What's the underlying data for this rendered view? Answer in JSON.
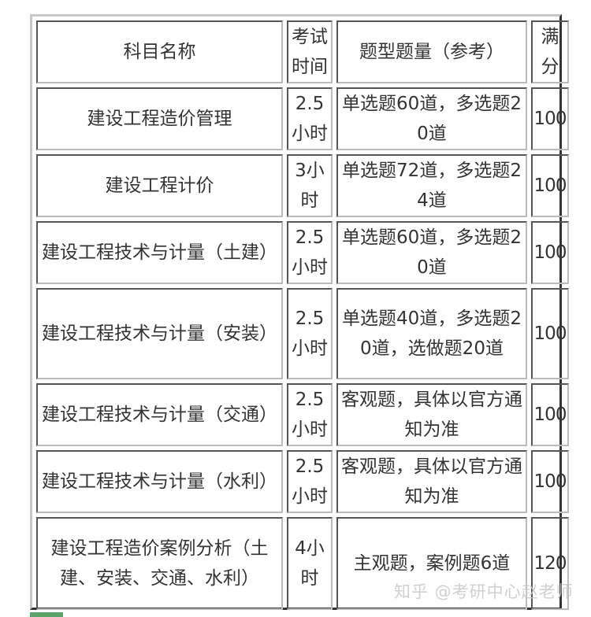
{
  "table": {
    "headers": [
      "科目名称",
      "考试时间",
      "题型题量（参考）",
      "满分"
    ],
    "rows": [
      [
        "建设工程造价管理",
        "2.5小时",
        "单选题60道，多选题20道",
        "100"
      ],
      [
        "建设工程计价",
        "3小时",
        "单选题72道，多选题24道",
        "100"
      ],
      [
        "建设工程技术与计量（土建）",
        "2.5小时",
        "单选题60道，多选题20道",
        "100"
      ],
      [
        "建设工程技术与计量（安装）",
        "2.5小时",
        "单选题40道，多选题20道，选做题20道",
        "100"
      ],
      [
        "建设工程技术与计量（交通）",
        "2.5小时",
        "客观题，具体以官方通知为准",
        "100"
      ],
      [
        "建设工程技术与计量（水利）",
        "2.5小时",
        "客观题，具体以官方通知为准",
        "100"
      ],
      [
        "建设工程造价案例分析（土建、安装、交通、水利）",
        "4小时",
        "主观题，案例题6道",
        "120"
      ]
    ]
  },
  "watermark": "知乎 @考研中心赵老师",
  "accent_color": "#5aa469"
}
